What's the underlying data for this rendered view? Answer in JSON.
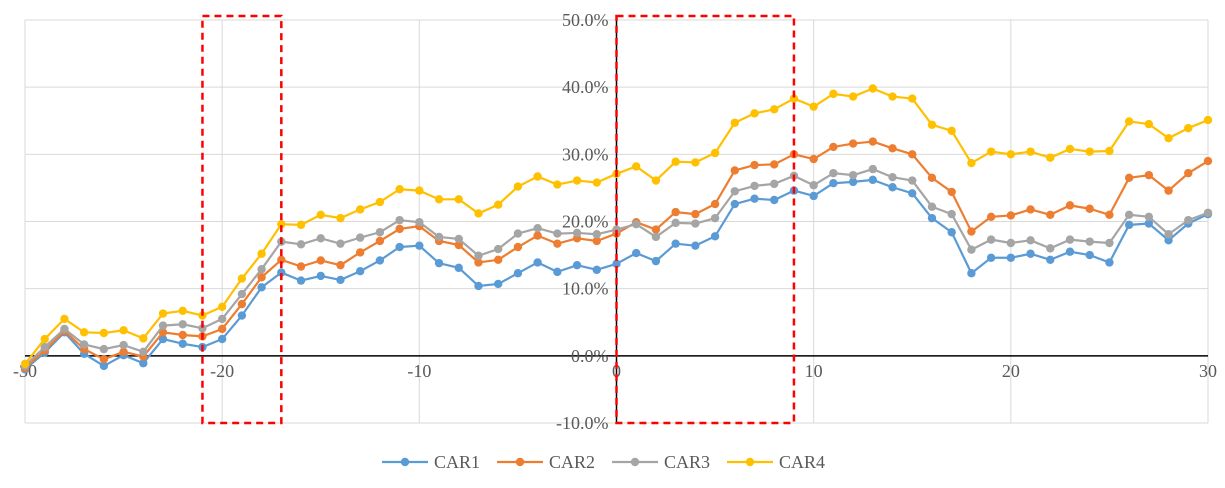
{
  "chart_data": {
    "type": "line",
    "title": "",
    "xlabel": "",
    "ylabel": "",
    "xlim": [
      -30,
      30
    ],
    "ylim": [
      -0.1,
      0.5
    ],
    "grid": true,
    "legend_position": "bottom",
    "x_ticks": [
      "-30",
      "-20",
      "-10",
      "0",
      "10",
      "20",
      "30"
    ],
    "x_tick_values": [
      -30,
      -20,
      -10,
      0,
      10,
      20,
      30
    ],
    "y_ticks": [
      "-10.0%",
      "0.0%",
      "10.0%",
      "20.0%",
      "30.0%",
      "40.0%",
      "50.0%"
    ],
    "y_tick_values": [
      -0.1,
      0.0,
      0.1,
      0.2,
      0.3,
      0.4,
      0.5
    ],
    "x": [
      -30,
      -29,
      -28,
      -27,
      -26,
      -25,
      -24,
      -23,
      -22,
      -21,
      -20,
      -19,
      -18,
      -17,
      -16,
      -15,
      -14,
      -13,
      -12,
      -11,
      -10,
      -9,
      -8,
      -7,
      -6,
      -5,
      -4,
      -3,
      -2,
      -1,
      0,
      1,
      2,
      3,
      4,
      5,
      6,
      7,
      8,
      9,
      10,
      11,
      12,
      13,
      14,
      15,
      16,
      17,
      18,
      19,
      20,
      21,
      22,
      23,
      24,
      25,
      26,
      27,
      28,
      29,
      30
    ],
    "series": [
      {
        "name": "CAR1",
        "color": "#5B9BD5",
        "values": [
          -0.02,
          0.005,
          0.035,
          0.003,
          -0.015,
          0.001,
          -0.011,
          0.025,
          0.018,
          0.013,
          0.025,
          0.06,
          0.102,
          0.124,
          0.112,
          0.119,
          0.113,
          0.126,
          0.142,
          0.162,
          0.164,
          0.138,
          0.131,
          0.104,
          0.107,
          0.123,
          0.139,
          0.125,
          0.135,
          0.128,
          0.137,
          0.153,
          0.141,
          0.167,
          0.164,
          0.178,
          0.226,
          0.234,
          0.232,
          0.246,
          0.238,
          0.257,
          0.259,
          0.262,
          0.251,
          0.242,
          0.205,
          0.184,
          0.123,
          0.146,
          0.146,
          0.152,
          0.143,
          0.155,
          0.15,
          0.139,
          0.195,
          0.197,
          0.172,
          0.197,
          0.211
        ]
      },
      {
        "name": "CAR2",
        "color": "#ED7D31",
        "values": [
          -0.018,
          0.008,
          0.037,
          0.01,
          -0.005,
          0.006,
          -0.001,
          0.035,
          0.031,
          0.029,
          0.04,
          0.077,
          0.117,
          0.143,
          0.133,
          0.142,
          0.135,
          0.154,
          0.171,
          0.189,
          0.193,
          0.171,
          0.165,
          0.139,
          0.143,
          0.162,
          0.179,
          0.167,
          0.175,
          0.171,
          0.182,
          0.199,
          0.188,
          0.214,
          0.211,
          0.226,
          0.276,
          0.284,
          0.285,
          0.3,
          0.293,
          0.311,
          0.316,
          0.319,
          0.309,
          0.3,
          0.265,
          0.244,
          0.185,
          0.207,
          0.209,
          0.218,
          0.21,
          0.224,
          0.219,
          0.21,
          0.265,
          0.269,
          0.246,
          0.272,
          0.29
        ]
      },
      {
        "name": "CAR3",
        "color": "#A5A5A5",
        "values": [
          -0.015,
          0.013,
          0.04,
          0.017,
          0.01,
          0.016,
          0.006,
          0.045,
          0.047,
          0.041,
          0.055,
          0.092,
          0.129,
          0.17,
          0.166,
          0.175,
          0.167,
          0.176,
          0.184,
          0.202,
          0.199,
          0.177,
          0.174,
          0.149,
          0.159,
          0.182,
          0.19,
          0.182,
          0.183,
          0.181,
          0.188,
          0.196,
          0.177,
          0.198,
          0.197,
          0.205,
          0.245,
          0.253,
          0.256,
          0.268,
          0.254,
          0.272,
          0.269,
          0.278,
          0.266,
          0.261,
          0.222,
          0.211,
          0.158,
          0.173,
          0.168,
          0.172,
          0.16,
          0.173,
          0.17,
          0.168,
          0.21,
          0.207,
          0.181,
          0.202,
          0.213
        ]
      },
      {
        "name": "CAR4",
        "color": "#FFC000",
        "values": [
          -0.012,
          0.025,
          0.055,
          0.035,
          0.034,
          0.038,
          0.026,
          0.063,
          0.067,
          0.06,
          0.073,
          0.115,
          0.152,
          0.196,
          0.195,
          0.21,
          0.205,
          0.218,
          0.229,
          0.248,
          0.246,
          0.233,
          0.233,
          0.212,
          0.225,
          0.252,
          0.267,
          0.255,
          0.261,
          0.258,
          0.271,
          0.282,
          0.261,
          0.289,
          0.288,
          0.302,
          0.347,
          0.361,
          0.367,
          0.383,
          0.371,
          0.39,
          0.386,
          0.398,
          0.386,
          0.383,
          0.344,
          0.335,
          0.287,
          0.304,
          0.3,
          0.304,
          0.295,
          0.308,
          0.304,
          0.305,
          0.349,
          0.345,
          0.324,
          0.339,
          0.351
        ]
      }
    ],
    "highlight_boxes": [
      {
        "x_from": -21,
        "x_to": -17,
        "color": "#FF0000"
      },
      {
        "x_from": 0,
        "x_to": 9,
        "color": "#FF0000"
      }
    ],
    "axis_color": "#000000",
    "grid_color": "#D9D9D9"
  }
}
